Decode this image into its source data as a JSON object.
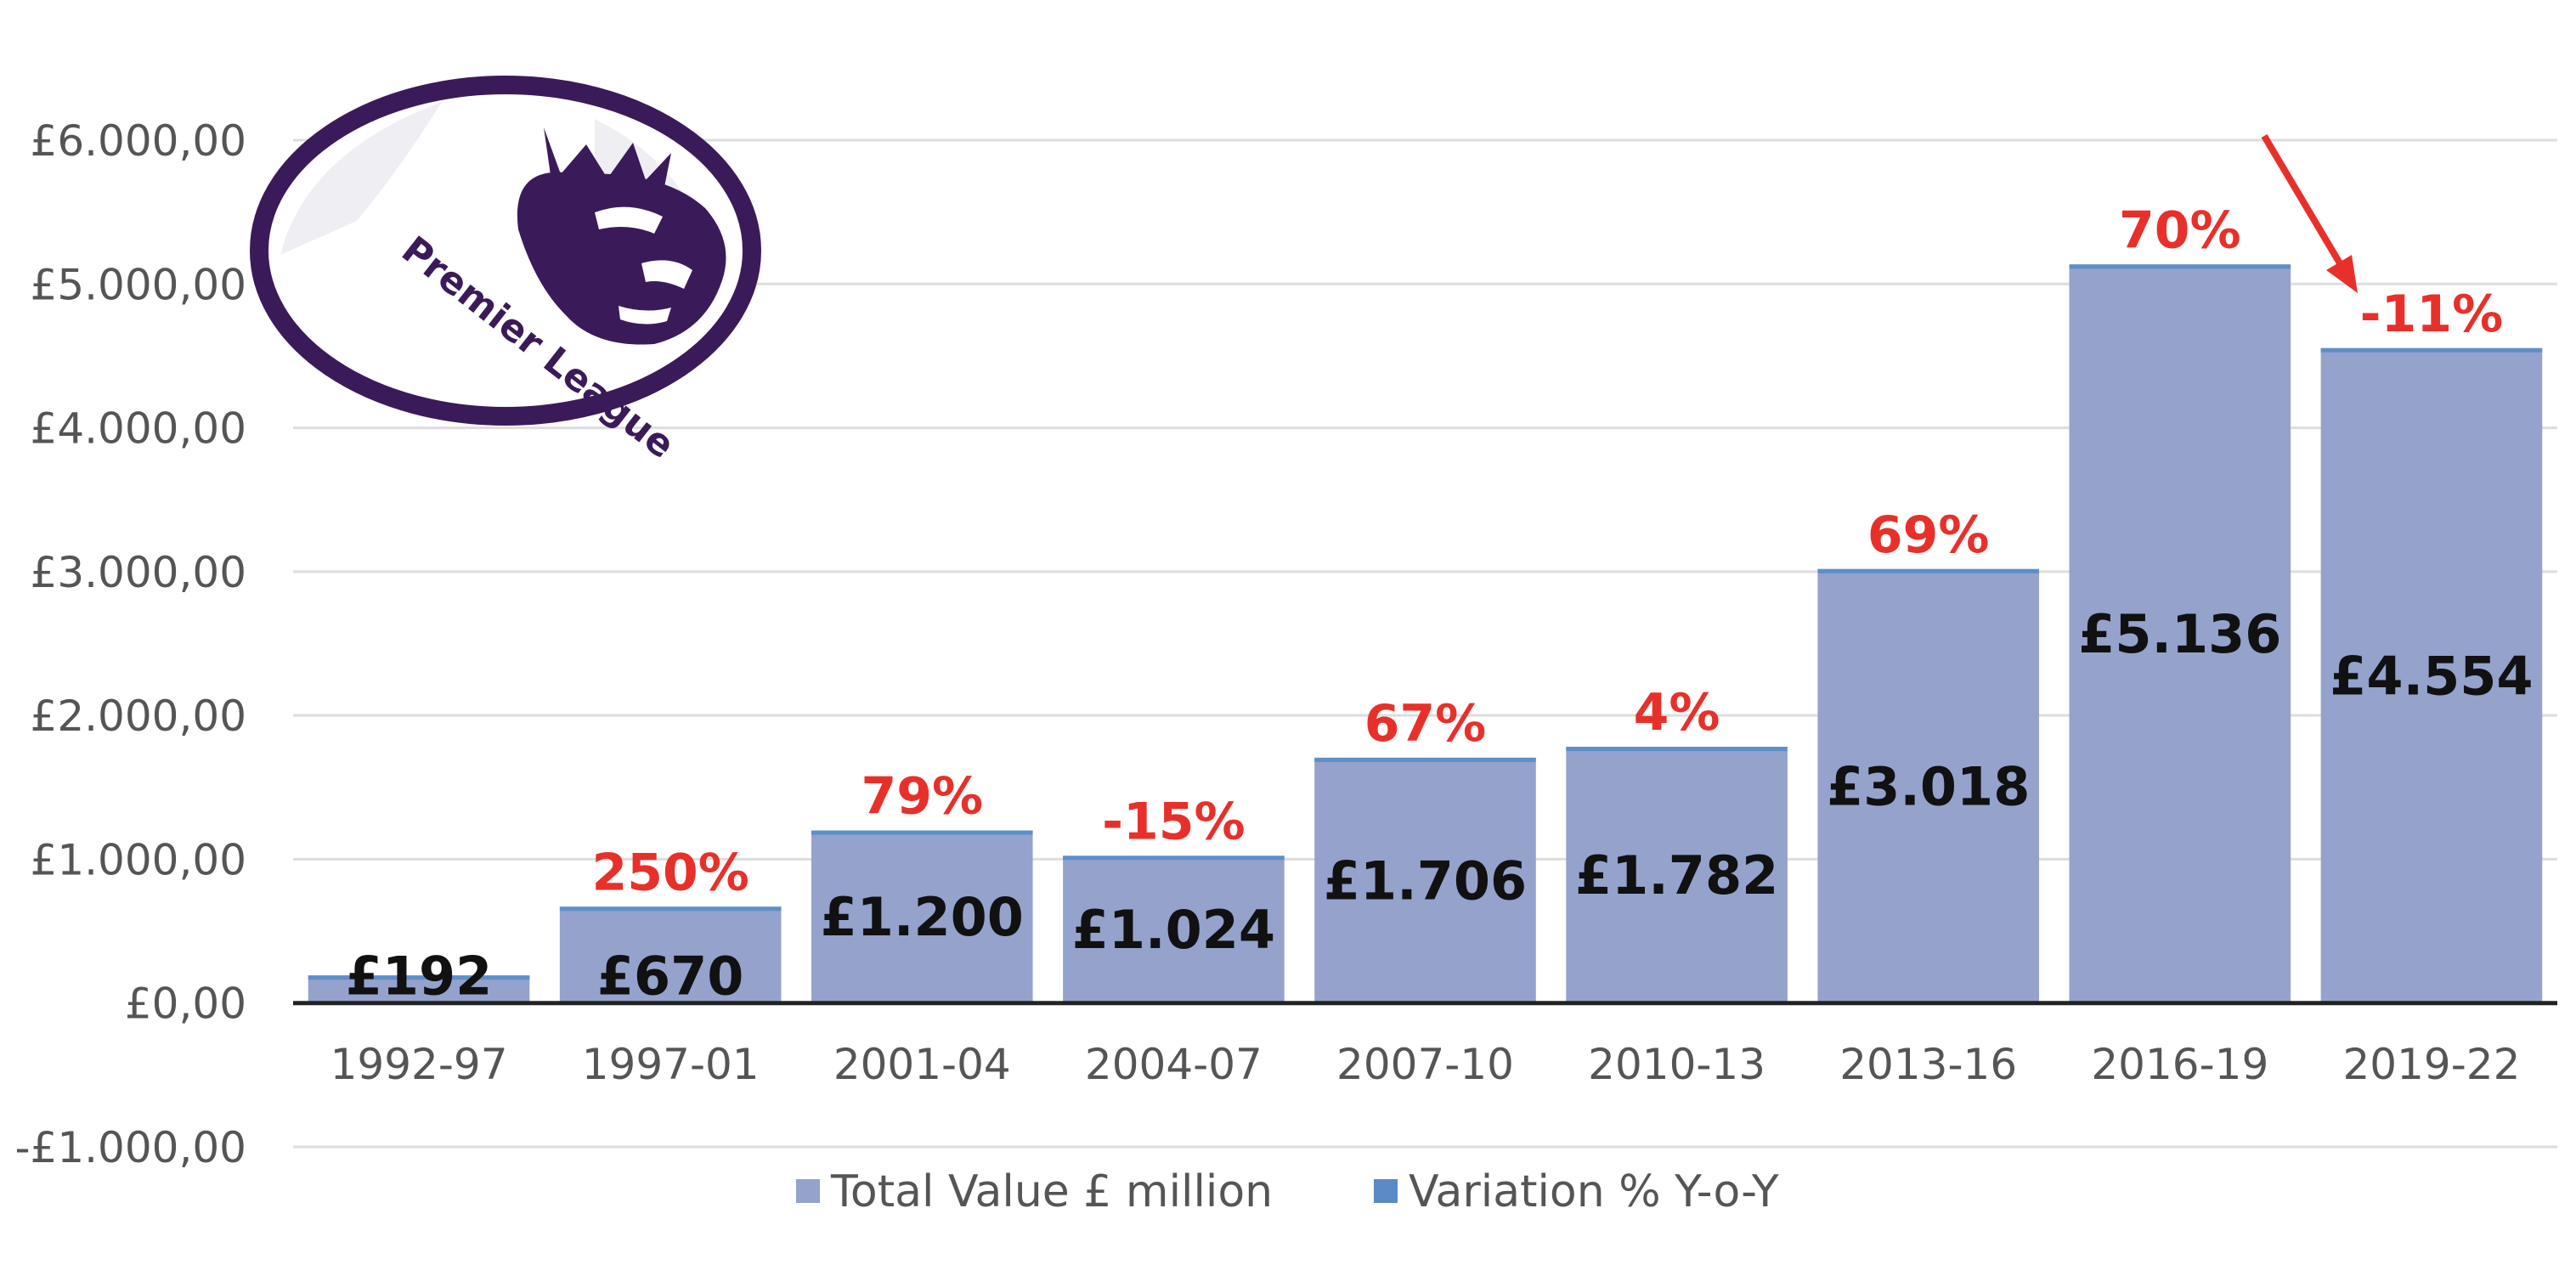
{
  "chart_data": {
    "type": "bar",
    "categories": [
      "1992-97",
      "1997-01",
      "2001-04",
      "2004-07",
      "2007-10",
      "2010-13",
      "2013-16",
      "2016-19",
      "2019-22"
    ],
    "series": [
      {
        "name": "Total Value  £ million",
        "values": [
          192,
          670,
          1200,
          1024,
          1706,
          1782,
          3018,
          5136,
          4554
        ]
      },
      {
        "name": "Variation % Y-o-Y",
        "values": [
          null,
          250,
          79,
          -15,
          67,
          4,
          69,
          70,
          -11
        ]
      }
    ],
    "value_labels": [
      "£192",
      "£670",
      "£1.200",
      "£1.024",
      "£1.706",
      "£1.782",
      "£3.018",
      "£5.136",
      "£4.554"
    ],
    "pct_labels": [
      "",
      "250%",
      "79%",
      "-15%",
      "67%",
      "4%",
      "69%",
      "70%",
      "-11%"
    ],
    "y_ticks": [
      -1000,
      0,
      1000,
      2000,
      3000,
      4000,
      5000,
      6000
    ],
    "y_tick_labels": [
      "-£1.000,00",
      "£0,00",
      "£1.000,00",
      "£2.000,00",
      "£3.000,00",
      "£4.000,00",
      "£5.000,00",
      "£6.000,00"
    ],
    "ylim": [
      -1000,
      6000
    ],
    "grid": true,
    "legend_position": "bottom",
    "annotation": "red arrow pointing to the 2019-22 decline",
    "title": "",
    "xlabel": "",
    "ylabel": ""
  },
  "logo": {
    "text": "Premier League"
  },
  "colors": {
    "bar": "#94a2cc",
    "bar_top": "#5d8fc9",
    "pct_text": "#e8302a",
    "grid": "#dddddd",
    "axis": "#222222",
    "logo_purple": "#3b1a5a",
    "legend_series2": "#5b8ac6"
  }
}
